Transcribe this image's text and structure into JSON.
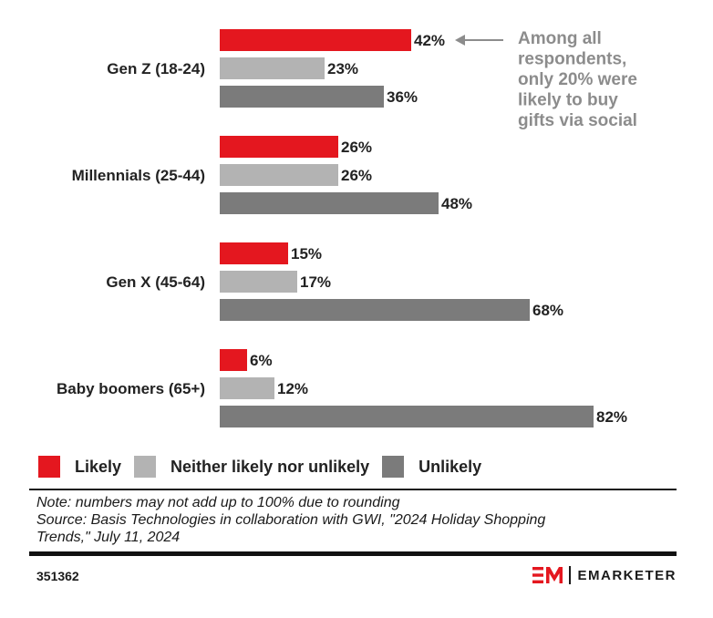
{
  "chart_data": {
    "type": "bar",
    "orientation": "horizontal",
    "categories": [
      "Gen Z (18-24)",
      "Millennials (25-44)",
      "Gen X (45-64)",
      "Baby boomers (65+)"
    ],
    "series": [
      {
        "name": "Likely",
        "color": "#e4171f",
        "values": [
          42,
          26,
          15,
          6
        ]
      },
      {
        "name": "Neither likely nor unlikely",
        "color": "#b3b3b3",
        "values": [
          23,
          26,
          17,
          12
        ]
      },
      {
        "name": "Unlikely",
        "color": "#7b7b7b",
        "values": [
          36,
          48,
          68,
          82
        ]
      }
    ],
    "value_suffix": "%",
    "xlim": [
      0,
      100
    ],
    "grid": false,
    "annotation": {
      "lines": [
        "Among all",
        "respondents,",
        "only 20% were",
        "likely to buy",
        "gifts via social"
      ],
      "points_to": "Gen Z (18-24) Likely"
    }
  },
  "legend": [
    {
      "label": "Likely",
      "color": "#e4171f"
    },
    {
      "label": "Neither likely nor unlikely",
      "color": "#b3b3b3"
    },
    {
      "label": "Unlikely",
      "color": "#7b7b7b"
    }
  ],
  "notes": {
    "note": "Note: numbers may not add up to 100% due to rounding",
    "source_line1": "Source: Basis Technologies in collaboration with GWI, \"2024 Holiday Shopping",
    "source_line2": "Trends,\" July 11, 2024"
  },
  "footer": {
    "chart_id": "351362",
    "brand": "EMARKETER",
    "brand_color": "#e4171f"
  }
}
